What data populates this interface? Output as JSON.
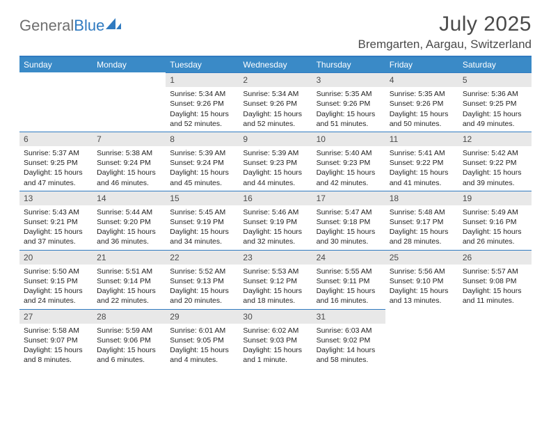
{
  "brand": {
    "part1": "General",
    "part2": "Blue"
  },
  "title": "July 2025",
  "location": "Bremgarten, Aargau, Switzerland",
  "colors": {
    "accent": "#3a8ac7",
    "rule": "#2f7ac0",
    "daynum_bg": "#e8e8e8",
    "text": "#222222",
    "header_text": "#4a4a4a",
    "logo_grey": "#6f6f6f"
  },
  "weekdays": [
    "Sunday",
    "Monday",
    "Tuesday",
    "Wednesday",
    "Thursday",
    "Friday",
    "Saturday"
  ],
  "month": {
    "year": 2025,
    "month": 7,
    "first_weekday_index": 2,
    "num_days": 31
  },
  "days": {
    "1": {
      "sunrise": "5:34 AM",
      "sunset": "9:26 PM",
      "daylight": "15 hours and 52 minutes."
    },
    "2": {
      "sunrise": "5:34 AM",
      "sunset": "9:26 PM",
      "daylight": "15 hours and 52 minutes."
    },
    "3": {
      "sunrise": "5:35 AM",
      "sunset": "9:26 PM",
      "daylight": "15 hours and 51 minutes."
    },
    "4": {
      "sunrise": "5:35 AM",
      "sunset": "9:26 PM",
      "daylight": "15 hours and 50 minutes."
    },
    "5": {
      "sunrise": "5:36 AM",
      "sunset": "9:25 PM",
      "daylight": "15 hours and 49 minutes."
    },
    "6": {
      "sunrise": "5:37 AM",
      "sunset": "9:25 PM",
      "daylight": "15 hours and 47 minutes."
    },
    "7": {
      "sunrise": "5:38 AM",
      "sunset": "9:24 PM",
      "daylight": "15 hours and 46 minutes."
    },
    "8": {
      "sunrise": "5:39 AM",
      "sunset": "9:24 PM",
      "daylight": "15 hours and 45 minutes."
    },
    "9": {
      "sunrise": "5:39 AM",
      "sunset": "9:23 PM",
      "daylight": "15 hours and 44 minutes."
    },
    "10": {
      "sunrise": "5:40 AM",
      "sunset": "9:23 PM",
      "daylight": "15 hours and 42 minutes."
    },
    "11": {
      "sunrise": "5:41 AM",
      "sunset": "9:22 PM",
      "daylight": "15 hours and 41 minutes."
    },
    "12": {
      "sunrise": "5:42 AM",
      "sunset": "9:22 PM",
      "daylight": "15 hours and 39 minutes."
    },
    "13": {
      "sunrise": "5:43 AM",
      "sunset": "9:21 PM",
      "daylight": "15 hours and 37 minutes."
    },
    "14": {
      "sunrise": "5:44 AM",
      "sunset": "9:20 PM",
      "daylight": "15 hours and 36 minutes."
    },
    "15": {
      "sunrise": "5:45 AM",
      "sunset": "9:19 PM",
      "daylight": "15 hours and 34 minutes."
    },
    "16": {
      "sunrise": "5:46 AM",
      "sunset": "9:19 PM",
      "daylight": "15 hours and 32 minutes."
    },
    "17": {
      "sunrise": "5:47 AM",
      "sunset": "9:18 PM",
      "daylight": "15 hours and 30 minutes."
    },
    "18": {
      "sunrise": "5:48 AM",
      "sunset": "9:17 PM",
      "daylight": "15 hours and 28 minutes."
    },
    "19": {
      "sunrise": "5:49 AM",
      "sunset": "9:16 PM",
      "daylight": "15 hours and 26 minutes."
    },
    "20": {
      "sunrise": "5:50 AM",
      "sunset": "9:15 PM",
      "daylight": "15 hours and 24 minutes."
    },
    "21": {
      "sunrise": "5:51 AM",
      "sunset": "9:14 PM",
      "daylight": "15 hours and 22 minutes."
    },
    "22": {
      "sunrise": "5:52 AM",
      "sunset": "9:13 PM",
      "daylight": "15 hours and 20 minutes."
    },
    "23": {
      "sunrise": "5:53 AM",
      "sunset": "9:12 PM",
      "daylight": "15 hours and 18 minutes."
    },
    "24": {
      "sunrise": "5:55 AM",
      "sunset": "9:11 PM",
      "daylight": "15 hours and 16 minutes."
    },
    "25": {
      "sunrise": "5:56 AM",
      "sunset": "9:10 PM",
      "daylight": "15 hours and 13 minutes."
    },
    "26": {
      "sunrise": "5:57 AM",
      "sunset": "9:08 PM",
      "daylight": "15 hours and 11 minutes."
    },
    "27": {
      "sunrise": "5:58 AM",
      "sunset": "9:07 PM",
      "daylight": "15 hours and 8 minutes."
    },
    "28": {
      "sunrise": "5:59 AM",
      "sunset": "9:06 PM",
      "daylight": "15 hours and 6 minutes."
    },
    "29": {
      "sunrise": "6:01 AM",
      "sunset": "9:05 PM",
      "daylight": "15 hours and 4 minutes."
    },
    "30": {
      "sunrise": "6:02 AM",
      "sunset": "9:03 PM",
      "daylight": "15 hours and 1 minute."
    },
    "31": {
      "sunrise": "6:03 AM",
      "sunset": "9:02 PM",
      "daylight": "14 hours and 58 minutes."
    }
  },
  "labels": {
    "sunrise": "Sunrise: ",
    "sunset": "Sunset: ",
    "daylight": "Daylight: "
  }
}
